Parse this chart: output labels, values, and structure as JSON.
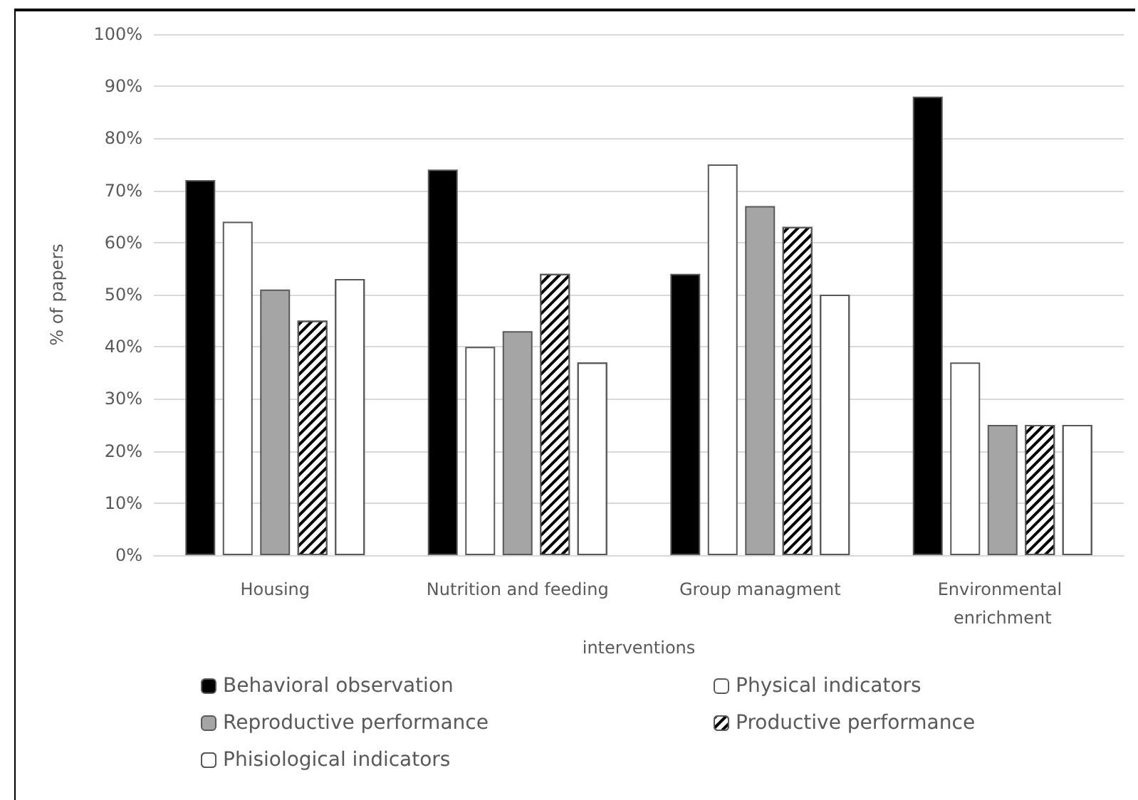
{
  "chart_data": {
    "type": "bar",
    "categories": [
      "Housing",
      "Nutrition and feeding",
      "Group managment",
      "Environmental enrichment"
    ],
    "xlabel": "interventions",
    "ylabel": "% of papers",
    "series": [
      {
        "name": "Behavioral observation",
        "color": "#000000",
        "values": [
          72,
          74,
          54,
          88
        ]
      },
      {
        "name": "Physical indicators",
        "color": "#ffffff",
        "values": [
          64,
          40,
          75,
          37
        ]
      },
      {
        "name": "Reproductive performance",
        "color": "#a5a5a5",
        "values": [
          51,
          43,
          67,
          25
        ]
      },
      {
        "name": "Productive performance",
        "color": "#ffffff",
        "values": [
          45,
          54,
          63,
          25
        ]
      },
      {
        "name": "Phisiological indicators",
        "color": "#ffffff",
        "values": [
          53,
          37,
          50,
          25
        ]
      }
    ],
    "ylim": [
      0,
      100
    ],
    "yticks": [
      {
        "value": 0,
        "label": "0%"
      },
      {
        "value": 10,
        "label": "10%"
      },
      {
        "value": 20,
        "label": "20%"
      },
      {
        "value": 30,
        "label": "30%"
      },
      {
        "value": 40,
        "label": "40%"
      },
      {
        "value": 50,
        "label": "50%"
      },
      {
        "value": 60,
        "label": "60%"
      },
      {
        "value": 70,
        "label": "70%"
      },
      {
        "value": 80,
        "label": "80%"
      },
      {
        "value": 90,
        "label": "90%"
      },
      {
        "value": 100,
        "label": "100%"
      }
    ],
    "grid": "y",
    "legend": "bottom"
  }
}
